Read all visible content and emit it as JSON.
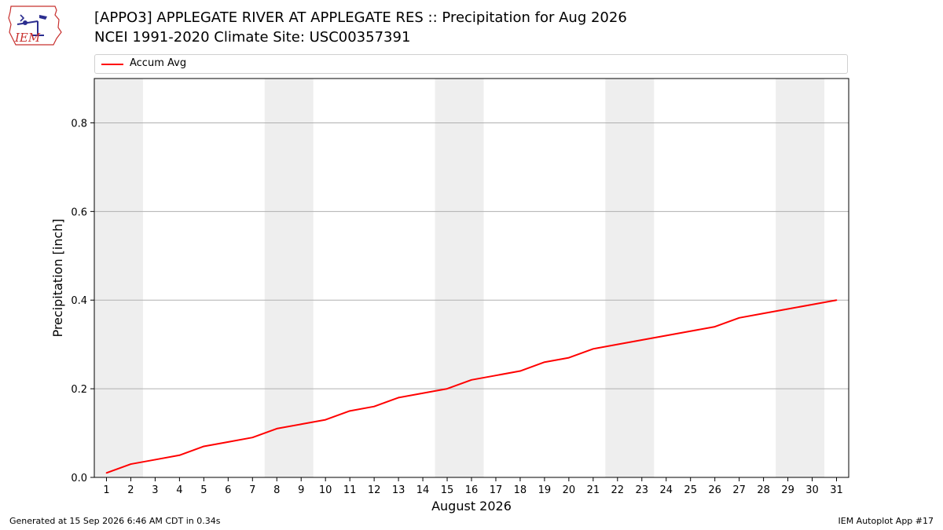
{
  "title_line1": "[APPO3] APPLEGATE RIVER  AT APPLEGATE RES :: Precipitation for Aug 2026",
  "title_line2": "NCEI 1991-2020 Climate Site: USC00357391",
  "logo_text": "IEM",
  "footer_left": "Generated at 15 Sep 2026 6:46 AM CDT in 0.34s",
  "footer_right": "IEM Autoplot App #17",
  "colors": {
    "line": "#ff0000",
    "weekend_band": "#eeeeee",
    "grid": "#b0b0b0"
  },
  "chart_data": {
    "type": "line",
    "xlabel": "August 2026",
    "ylabel": "Precipitation [inch]",
    "xlim": [
      0.5,
      31.5
    ],
    "ylim": [
      0,
      0.9
    ],
    "x_ticks": [
      1,
      2,
      3,
      4,
      5,
      6,
      7,
      8,
      9,
      10,
      11,
      12,
      13,
      14,
      15,
      16,
      17,
      18,
      19,
      20,
      21,
      22,
      23,
      24,
      25,
      26,
      27,
      28,
      29,
      30,
      31
    ],
    "y_ticks": [
      0.0,
      0.2,
      0.4,
      0.6,
      0.8
    ],
    "y_tick_labels": [
      "0.0",
      "0.2",
      "0.4",
      "0.6",
      "0.8"
    ],
    "grid": "y-axis only",
    "legend": "top",
    "shaded_day_ranges": [
      [
        1,
        2
      ],
      [
        8,
        9
      ],
      [
        15,
        16
      ],
      [
        22,
        23
      ],
      [
        29,
        30
      ]
    ],
    "series": [
      {
        "name": "Accum Avg",
        "color": "#ff0000",
        "x": [
          1,
          2,
          3,
          4,
          5,
          6,
          7,
          8,
          9,
          10,
          11,
          12,
          13,
          14,
          15,
          16,
          17,
          18,
          19,
          20,
          21,
          22,
          23,
          24,
          25,
          26,
          27,
          28,
          29,
          30,
          31
        ],
        "values": [
          0.01,
          0.03,
          0.04,
          0.05,
          0.07,
          0.08,
          0.09,
          0.11,
          0.12,
          0.13,
          0.15,
          0.16,
          0.18,
          0.19,
          0.2,
          0.22,
          0.23,
          0.24,
          0.26,
          0.27,
          0.29,
          0.3,
          0.31,
          0.32,
          0.33,
          0.34,
          0.36,
          0.37,
          0.38,
          0.39,
          0.4
        ]
      }
    ]
  }
}
